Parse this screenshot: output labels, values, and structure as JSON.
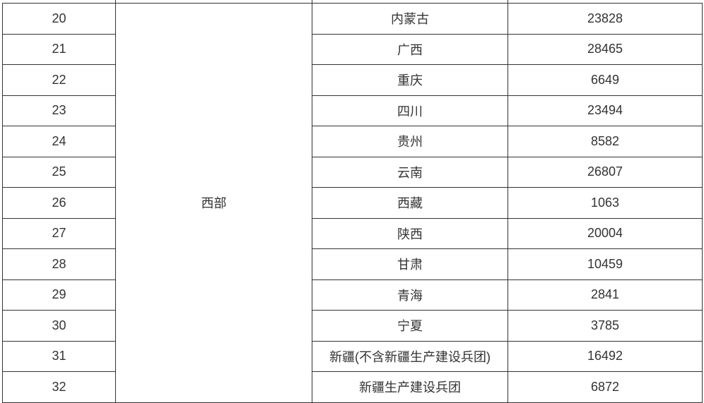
{
  "region": "西部",
  "rows": [
    {
      "no": "20",
      "province": "内蒙古",
      "value": "23828"
    },
    {
      "no": "21",
      "province": "广西",
      "value": "28465"
    },
    {
      "no": "22",
      "province": "重庆",
      "value": "6649"
    },
    {
      "no": "23",
      "province": "四川",
      "value": "23494"
    },
    {
      "no": "24",
      "province": "贵州",
      "value": "8582"
    },
    {
      "no": "25",
      "province": "云南",
      "value": "26807"
    },
    {
      "no": "26",
      "province": "西藏",
      "value": "1063"
    },
    {
      "no": "27",
      "province": "陕西",
      "value": "20004"
    },
    {
      "no": "28",
      "province": "甘肃",
      "value": "10459"
    },
    {
      "no": "29",
      "province": "青海",
      "value": "2841"
    },
    {
      "no": "30",
      "province": "宁夏",
      "value": "3785"
    },
    {
      "no": "31",
      "province": "新疆(不含新疆生产建设兵团)",
      "value": "16492"
    },
    {
      "no": "32",
      "province": "新疆生产建设兵团",
      "value": "6872"
    }
  ]
}
